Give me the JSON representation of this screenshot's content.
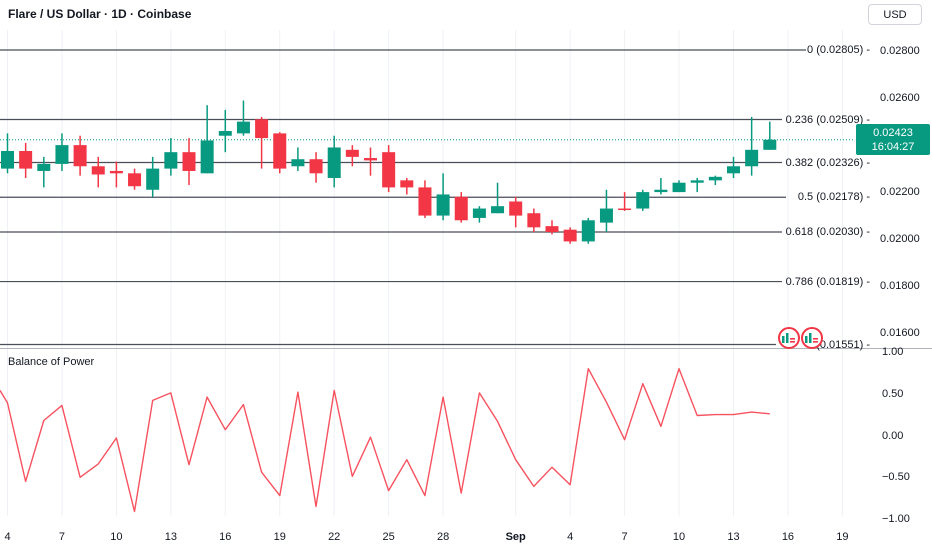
{
  "header": {
    "title": "Flare / US Dollar · 1D · Coinbase",
    "currency_button_label": "USD"
  },
  "price_badge": {
    "price": "0.02423",
    "countdown": "16:04:27"
  },
  "indicator_pane": {
    "title": "Balance of Power"
  },
  "icons": {
    "drawing_marker_1": "chart-marker-icon",
    "drawing_marker_2": "chart-marker-icon"
  },
  "colors": {
    "up": "#089981",
    "down": "#f23645",
    "bop_line": "#f7525f",
    "fib_line": "#4a4e59",
    "grid": "#eef1f6",
    "separator": "#b0b3bb",
    "badge_bg": "#089981",
    "text": "#131722"
  },
  "chart_data": [
    {
      "type": "candlestick",
      "title": "Flare / US Dollar · 1D · Coinbase",
      "ohlc_order": [
        "open",
        "high",
        "low",
        "close"
      ],
      "y_range": [
        0.01551,
        0.02805
      ],
      "last_price": 0.02423,
      "grid": "vertical-only",
      "candles": [
        [
          0.023,
          0.0245,
          0.0228,
          0.02375
        ],
        [
          0.02375,
          0.0241,
          0.0226,
          0.023
        ],
        [
          0.0229,
          0.0235,
          0.0222,
          0.0232
        ],
        [
          0.0232,
          0.0245,
          0.0229,
          0.024
        ],
        [
          0.024,
          0.0244,
          0.0227,
          0.0231
        ],
        [
          0.0231,
          0.0235,
          0.0222,
          0.02275
        ],
        [
          0.0229,
          0.0233,
          0.0222,
          0.0228
        ],
        [
          0.0228,
          0.023,
          0.0221,
          0.02225
        ],
        [
          0.0221,
          0.0235,
          0.0218,
          0.023
        ],
        [
          0.023,
          0.0243,
          0.0227,
          0.0237
        ],
        [
          0.0237,
          0.0243,
          0.0223,
          0.0229
        ],
        [
          0.0228,
          0.0257,
          0.0228,
          0.0242
        ],
        [
          0.0244,
          0.0255,
          0.0237,
          0.0246
        ],
        [
          0.0245,
          0.0259,
          0.0244,
          0.025
        ],
        [
          0.0251,
          0.0252,
          0.023,
          0.0243
        ],
        [
          0.0245,
          0.02455,
          0.0228,
          0.023
        ],
        [
          0.0231,
          0.0239,
          0.0229,
          0.0234
        ],
        [
          0.0234,
          0.0237,
          0.0224,
          0.0228
        ],
        [
          0.0226,
          0.0244,
          0.0222,
          0.0239
        ],
        [
          0.0238,
          0.024,
          0.0231,
          0.0235
        ],
        [
          0.02345,
          0.0239,
          0.0227,
          0.02335
        ],
        [
          0.0237,
          0.024,
          0.022,
          0.0222
        ],
        [
          0.0225,
          0.0226,
          0.0219,
          0.0222
        ],
        [
          0.0222,
          0.0225,
          0.0209,
          0.021
        ],
        [
          0.021,
          0.0228,
          0.0208,
          0.0219
        ],
        [
          0.0218,
          0.022,
          0.0207,
          0.0208
        ],
        [
          0.0209,
          0.0214,
          0.0207,
          0.0213
        ],
        [
          0.0211,
          0.0224,
          0.0211,
          0.0214
        ],
        [
          0.0216,
          0.0218,
          0.0205,
          0.021
        ],
        [
          0.0211,
          0.0213,
          0.0203,
          0.0205
        ],
        [
          0.02055,
          0.0208,
          0.0202,
          0.0203
        ],
        [
          0.0204,
          0.0205,
          0.0198,
          0.0199
        ],
        [
          0.0199,
          0.0209,
          0.0198,
          0.0208
        ],
        [
          0.0207,
          0.0221,
          0.0203,
          0.0213
        ],
        [
          0.0213,
          0.022,
          0.0212,
          0.02125
        ],
        [
          0.0213,
          0.0221,
          0.0212,
          0.022
        ],
        [
          0.022,
          0.0226,
          0.0219,
          0.0221
        ],
        [
          0.022,
          0.0225,
          0.022,
          0.0224
        ],
        [
          0.0224,
          0.0226,
          0.022,
          0.0225
        ],
        [
          0.0225,
          0.0227,
          0.0223,
          0.02265
        ],
        [
          0.0228,
          0.0235,
          0.0226,
          0.0231
        ],
        [
          0.0231,
          0.0252,
          0.0227,
          0.0238
        ],
        [
          0.0238,
          0.025,
          0.0238,
          0.02423
        ]
      ],
      "fib_levels": [
        {
          "level": "0",
          "price": 0.02805,
          "label": "0 (0.02805) -",
          "line_end_x": 806
        },
        {
          "level": "0.236",
          "price": 0.02509,
          "label": "0.236 (0.02509) -",
          "line_end_x": 782
        },
        {
          "level": "0.382",
          "price": 0.02326,
          "label": "0.382 (0.02326) -",
          "line_end_x": 782
        },
        {
          "level": "0.5",
          "price": 0.02178,
          "label": "0.5 (0.02178) -",
          "line_end_x": 786
        },
        {
          "level": "0.618",
          "price": 0.0203,
          "label": "0.618 (0.02030) -",
          "line_end_x": 782
        },
        {
          "level": "0.786",
          "price": 0.01819,
          "label": "0.786 (0.01819) -",
          "line_end_x": 782
        },
        {
          "level": "1",
          "price": 0.01551,
          "label": "(0.01551) -",
          "line_end_x": 776
        }
      ],
      "price_ticks": [
        {
          "label": "0.02800",
          "value": 0.028
        },
        {
          "label": "0.02600",
          "value": 0.026
        },
        {
          "label": "0.02200",
          "value": 0.022
        },
        {
          "label": "0.02000",
          "value": 0.02
        },
        {
          "label": "0.01800",
          "value": 0.018
        },
        {
          "label": "0.01600",
          "value": 0.016
        }
      ],
      "time_labels": [
        {
          "label": "4",
          "day": 0
        },
        {
          "label": "7",
          "day": 3
        },
        {
          "label": "10",
          "day": 6
        },
        {
          "label": "13",
          "day": 9
        },
        {
          "label": "16",
          "day": 12
        },
        {
          "label": "19",
          "day": 15
        },
        {
          "label": "22",
          "day": 18
        },
        {
          "label": "25",
          "day": 21
        },
        {
          "label": "28",
          "day": 24
        },
        {
          "label": "Sep",
          "day": 28,
          "bold": true
        },
        {
          "label": "4",
          "day": 31
        },
        {
          "label": "7",
          "day": 34
        },
        {
          "label": "10",
          "day": 37
        },
        {
          "label": "13",
          "day": 40
        },
        {
          "label": "16",
          "day": 43
        },
        {
          "label": "19",
          "day": 46
        }
      ]
    },
    {
      "type": "line",
      "title": "Balance of Power",
      "ylim": [
        -1.0,
        1.0
      ],
      "lead_in_value": 0.54,
      "values": [
        0.39,
        -0.55,
        0.18,
        0.36,
        -0.5,
        -0.34,
        -0.03,
        -0.91,
        0.42,
        0.51,
        -0.35,
        0.46,
        0.07,
        0.37,
        -0.44,
        -0.72,
        0.52,
        -0.85,
        0.54,
        -0.49,
        -0.02,
        -0.66,
        -0.29,
        -0.72,
        0.46,
        -0.69,
        0.51,
        0.17,
        -0.29,
        -0.61,
        -0.38,
        -0.59,
        0.8,
        0.4,
        -0.05,
        0.62,
        0.11,
        0.8,
        0.24,
        0.25,
        0.25,
        0.28,
        0.26
      ],
      "y_ticks": [
        {
          "label": "1.00",
          "value": 1.0
        },
        {
          "label": "0.50",
          "value": 0.5
        },
        {
          "label": "0.00",
          "value": 0.0
        },
        {
          "label": "−0.50",
          "value": -0.5
        },
        {
          "label": "−1.00",
          "value": -1.0
        }
      ]
    }
  ]
}
